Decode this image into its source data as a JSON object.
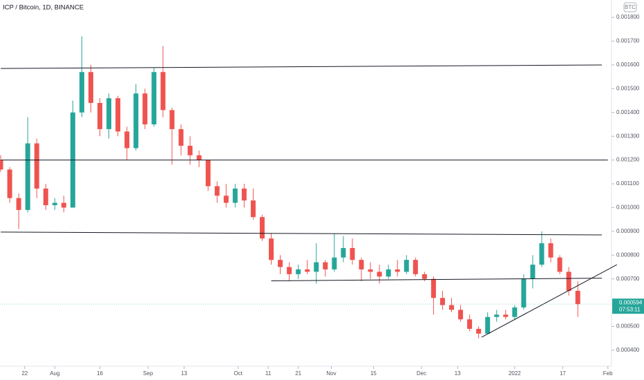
{
  "chart_data": {
    "type": "candlestick",
    "title": "ICP / Bitcoin, 1D, BINANCE",
    "currency": "BTC",
    "up_color": "#26a69a",
    "down_color": "#ef5350",
    "x": [
      "2021-07-14",
      "2021-07-17",
      "2021-07-20",
      "2021-07-23",
      "2021-07-26",
      "2021-07-29",
      "2021-08-01",
      "2021-08-04",
      "2021-08-07",
      "2021-08-10",
      "2021-08-13",
      "2021-08-16",
      "2021-08-19",
      "2021-08-22",
      "2021-08-25",
      "2021-08-28",
      "2021-08-31",
      "2021-09-03",
      "2021-09-06",
      "2021-09-09",
      "2021-09-12",
      "2021-09-15",
      "2021-09-18",
      "2021-09-21",
      "2021-09-24",
      "2021-09-27",
      "2021-09-30",
      "2021-10-03",
      "2021-10-06",
      "2021-10-09",
      "2021-10-12",
      "2021-10-15",
      "2021-10-18",
      "2021-10-21",
      "2021-10-24",
      "2021-10-27",
      "2021-10-30",
      "2021-11-02",
      "2021-11-05",
      "2021-11-08",
      "2021-11-11",
      "2021-11-14",
      "2021-11-17",
      "2021-11-20",
      "2021-11-23",
      "2021-11-26",
      "2021-11-29",
      "2021-12-02",
      "2021-12-05",
      "2021-12-08",
      "2021-12-11",
      "2021-12-14",
      "2021-12-17",
      "2021-12-20",
      "2021-12-23",
      "2021-12-26",
      "2021-12-29",
      "2022-01-01",
      "2022-01-04",
      "2022-01-07",
      "2022-01-10",
      "2022-01-13",
      "2022-01-16",
      "2022-01-19",
      "2022-01-22"
    ],
    "open": [
      0.0012,
      0.00116,
      0.00104,
      0.00099,
      0.00127,
      0.00108,
      0.00101,
      0.00102,
      0.001,
      0.0014,
      0.00157,
      0.00144,
      0.00133,
      0.00146,
      0.00132,
      0.00125,
      0.00148,
      0.00135,
      0.00157,
      0.00141,
      0.00133,
      0.00126,
      0.00122,
      0.0012,
      0.00109,
      0.00105,
      0.00102,
      0.00108,
      0.00103,
      0.00096,
      0.00087,
      0.00078,
      0.00075,
      0.00072,
      0.00074,
      0.00073,
      0.00077,
      0.00074,
      0.00079,
      0.00083,
      0.00078,
      0.00074,
      0.00073,
      0.00071,
      0.00074,
      0.00073,
      0.00078,
      0.00072,
      0.0007,
      0.00062,
      0.00059,
      0.00057,
      0.00053,
      0.00049,
      0.00047,
      0.00054,
      0.00055,
      0.00054,
      0.00058,
      0.0007,
      0.00076,
      0.00085,
      0.00079,
      0.00073,
      0.00065
    ],
    "high": [
      0.00122,
      0.00117,
      0.00106,
      0.00138,
      0.00129,
      0.0011,
      0.00104,
      0.00105,
      0.00145,
      0.00172,
      0.0016,
      0.00146,
      0.00148,
      0.00147,
      0.00134,
      0.00152,
      0.0015,
      0.00159,
      0.00168,
      0.00142,
      0.00135,
      0.0013,
      0.00124,
      0.0012,
      0.00111,
      0.0011,
      0.0011,
      0.0011,
      0.00108,
      0.00097,
      0.00089,
      0.0008,
      0.00077,
      0.00076,
      0.00078,
      0.00085,
      0.00078,
      0.00089,
      0.00088,
      0.00087,
      0.00079,
      0.00077,
      0.00076,
      0.00076,
      0.00078,
      0.0008,
      0.00079,
      0.00073,
      0.00071,
      0.00065,
      0.00062,
      0.00059,
      0.00055,
      0.0005,
      0.00056,
      0.00057,
      0.00057,
      0.00059,
      0.00072,
      0.0008,
      0.0009,
      0.00087,
      0.0008,
      0.00075,
      0.00069
    ],
    "low": [
      0.00115,
      0.00102,
      0.00091,
      0.00098,
      0.00104,
      0.00099,
      0.00099,
      0.00098,
      0.001,
      0.00138,
      0.0014,
      0.0013,
      0.00129,
      0.0013,
      0.0012,
      0.00124,
      0.00133,
      0.00134,
      0.00138,
      0.00118,
      0.00122,
      0.00118,
      0.00117,
      0.00107,
      0.00102,
      0.001,
      0.001,
      0.001,
      0.00095,
      0.00086,
      0.00076,
      0.00072,
      0.00069,
      0.0007,
      0.00072,
      0.00068,
      0.00071,
      0.00073,
      0.00077,
      0.00076,
      0.00069,
      0.0007,
      0.00068,
      0.0007,
      0.00071,
      0.00072,
      0.00071,
      0.00069,
      0.00055,
      0.00057,
      0.00056,
      0.00052,
      0.00048,
      0.00045,
      0.00047,
      0.00052,
      0.00053,
      0.00053,
      0.00057,
      0.00066,
      0.00075,
      0.00077,
      0.00072,
      0.00063,
      0.00054
    ],
    "close": [
      0.00116,
      0.00104,
      0.00099,
      0.00127,
      0.00108,
      0.00101,
      0.00102,
      0.001,
      0.0014,
      0.00157,
      0.00144,
      0.00133,
      0.00146,
      0.00132,
      0.00125,
      0.00148,
      0.00135,
      0.00157,
      0.00141,
      0.00133,
      0.00126,
      0.00122,
      0.0012,
      0.00109,
      0.00105,
      0.00102,
      0.00108,
      0.00103,
      0.00096,
      0.00087,
      0.00078,
      0.00075,
      0.00072,
      0.00074,
      0.00073,
      0.00077,
      0.00074,
      0.00079,
      0.00083,
      0.00078,
      0.00074,
      0.00073,
      0.00071,
      0.00074,
      0.00073,
      0.00078,
      0.00072,
      0.0007,
      0.00062,
      0.00059,
      0.00057,
      0.00053,
      0.00049,
      0.00047,
      0.00054,
      0.00055,
      0.00054,
      0.00058,
      0.0007,
      0.00076,
      0.00085,
      0.00079,
      0.00073,
      0.00065,
      0.000594
    ],
    "ylim": [
      0.000333,
      0.001873
    ],
    "yticks": [
      {
        "value": 0.0018,
        "label": "0.001800"
      },
      {
        "value": 0.0017,
        "label": "0.001700"
      },
      {
        "value": 0.0016,
        "label": "0.001600"
      },
      {
        "value": 0.0015,
        "label": "0.001500"
      },
      {
        "value": 0.0014,
        "label": "0.001400"
      },
      {
        "value": 0.0013,
        "label": "0.001300"
      },
      {
        "value": 0.0012,
        "label": "0.001200"
      },
      {
        "value": 0.0011,
        "label": "0.001100"
      },
      {
        "value": 0.001,
        "label": "0.001000"
      },
      {
        "value": 0.0009,
        "label": "0.000900"
      },
      {
        "value": 0.0008,
        "label": "0.000800"
      },
      {
        "value": 0.0007,
        "label": "0.000700"
      },
      {
        "value": 0.0005,
        "label": "0.000500"
      },
      {
        "value": 0.0004,
        "label": "0.000400"
      }
    ],
    "xticks": [
      {
        "value": "2021-07-22",
        "label": "22"
      },
      {
        "value": "2021-08-01",
        "label": "Aug"
      },
      {
        "value": "2021-08-16",
        "label": "16"
      },
      {
        "value": "2021-09-01",
        "label": "Sep"
      },
      {
        "value": "2021-09-13",
        "label": "13"
      },
      {
        "value": "2021-10-01",
        "label": "Oct"
      },
      {
        "value": "2021-10-11",
        "label": "11"
      },
      {
        "value": "2021-10-21",
        "label": "21"
      },
      {
        "value": "2021-11-01",
        "label": "Nov"
      },
      {
        "value": "2021-11-15",
        "label": "15"
      },
      {
        "value": "2021-12-01",
        "label": "Dec"
      },
      {
        "value": "2021-12-13",
        "label": "13"
      },
      {
        "value": "2022-01-01",
        "label": "2022"
      },
      {
        "value": "2022-01-17",
        "label": "17"
      },
      {
        "value": "2022-02-01",
        "label": "Feb"
      }
    ],
    "trendlines": [
      {
        "x": [
          "2021-07-14",
          "2022-01-30"
        ],
        "y": [
          0.001585,
          0.0016
        ]
      },
      {
        "x": [
          "2021-07-14",
          "2022-02-01"
        ],
        "y": [
          0.0012,
          0.0012
        ]
      },
      {
        "x": [
          "2021-07-14",
          "2022-01-30"
        ],
        "y": [
          0.000897,
          0.000885
        ]
      },
      {
        "x": [
          "2021-10-12",
          "2022-01-30"
        ],
        "y": [
          0.000692,
          0.000703
        ]
      },
      {
        "x": [
          "2021-12-21",
          "2022-02-04"
        ],
        "y": [
          0.000455,
          0.00076
        ]
      }
    ],
    "last_price": 0.000594,
    "countdown": "07:53:11"
  }
}
